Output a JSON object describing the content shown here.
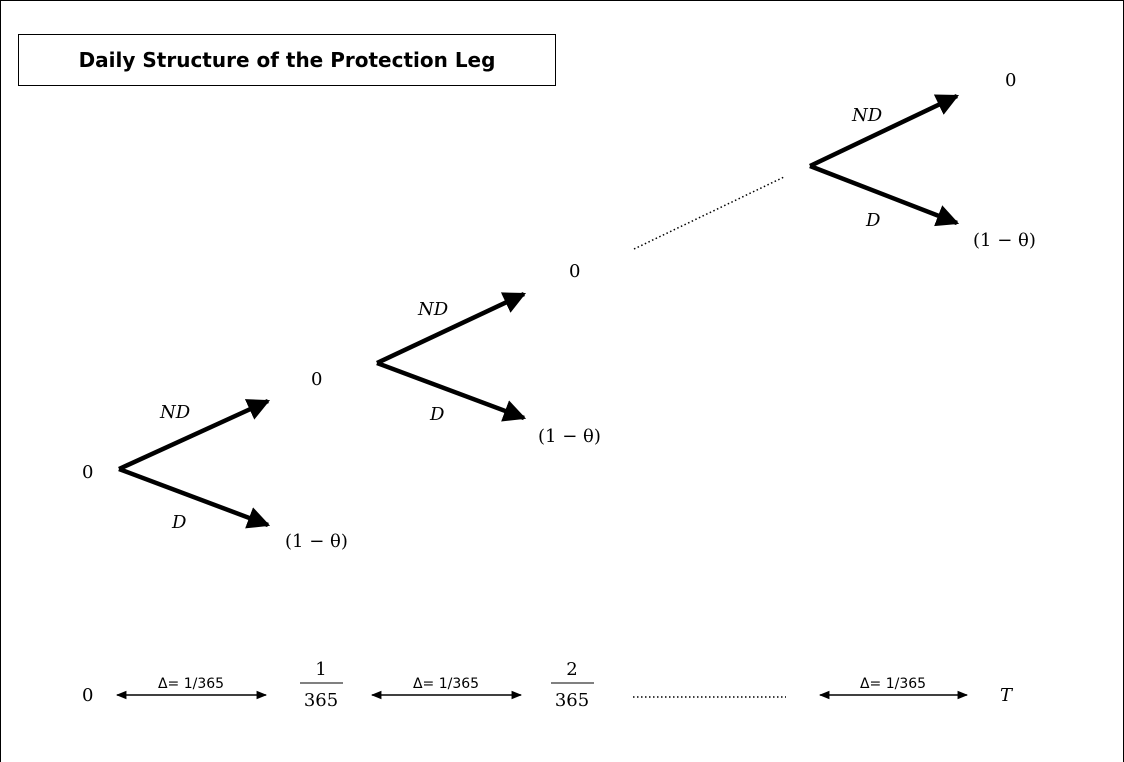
{
  "title": "Daily Structure of the Protection Leg",
  "nodes": {
    "start": "0",
    "branch_up_label": "ND",
    "branch_down_label": "D",
    "no_default_value": "0",
    "default_value": "(1 − θ)"
  },
  "timeline": {
    "t0": "0",
    "interval_label": "Δ= 1/365",
    "t1_num": "1",
    "t1_den": "365",
    "t2_num": "2",
    "t2_den": "365",
    "tT": "T"
  }
}
